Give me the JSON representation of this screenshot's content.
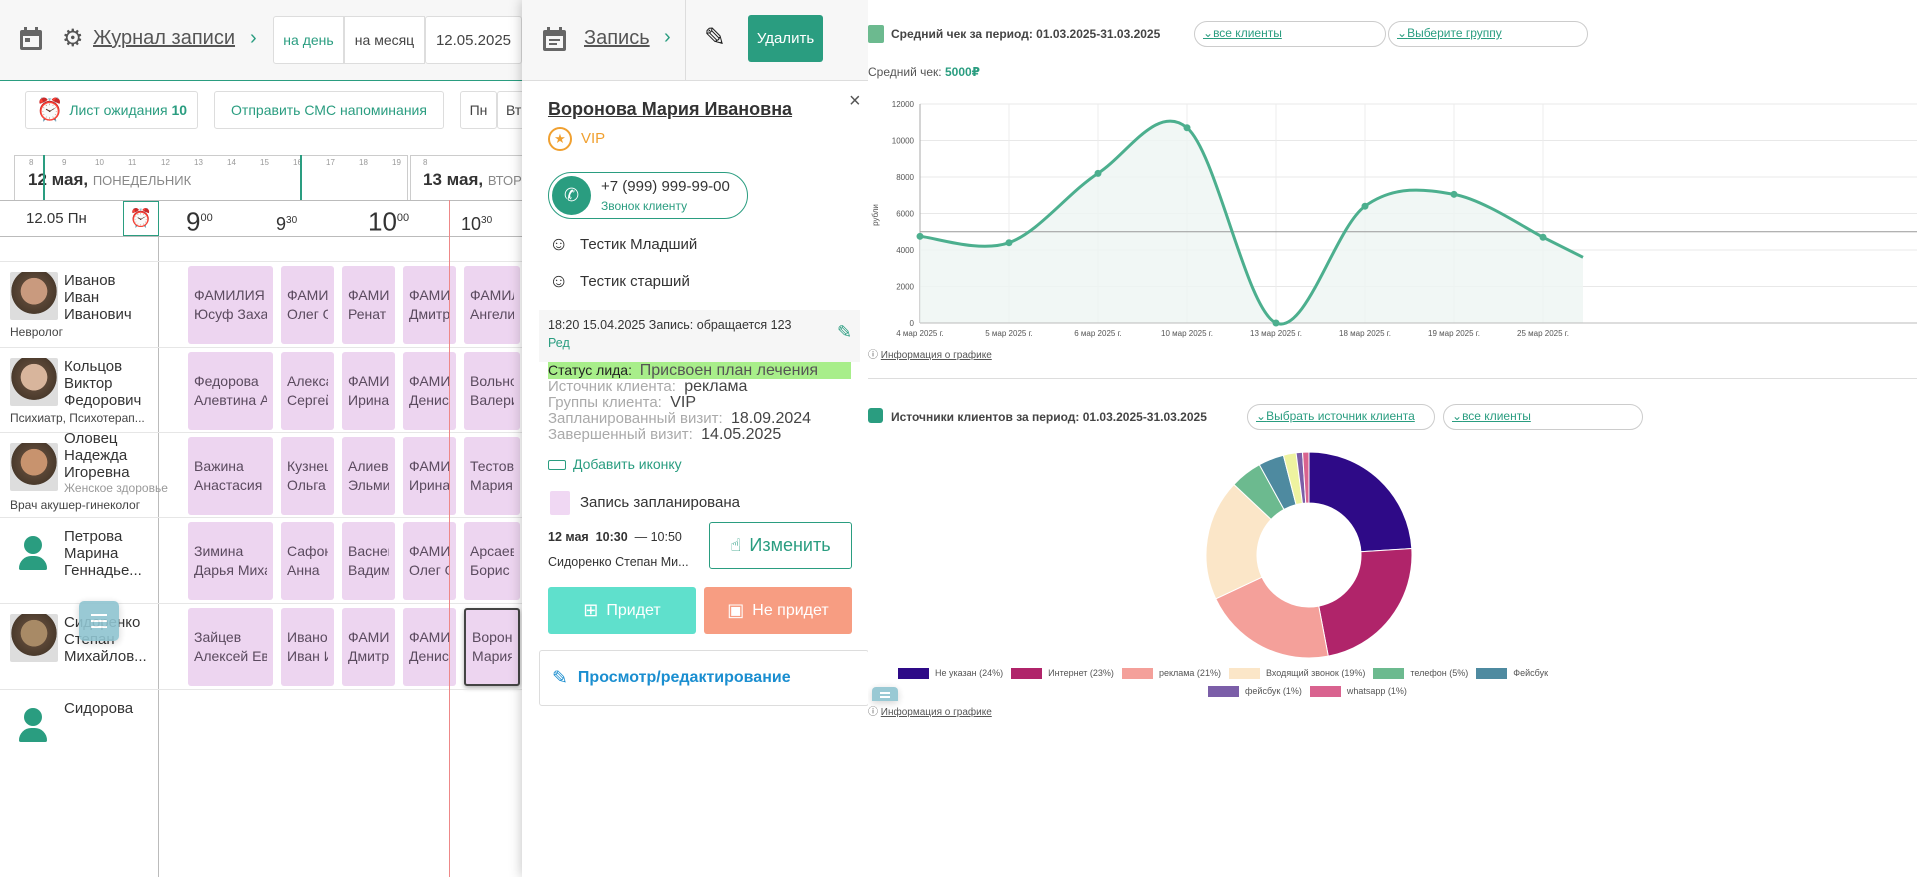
{
  "header": {
    "title": "Журнал записи",
    "view_day": "на день",
    "view_month": "на месяц",
    "date": "12.05.2025"
  },
  "toolbar": {
    "waitlist_label": "Лист ожидания",
    "waitlist_count": "10",
    "sms_label": "Отправить СМС напоминания",
    "weekdays": [
      "Пн",
      "Вт"
    ]
  },
  "timeline": {
    "hours": [
      "8",
      "9",
      "10",
      "11",
      "12",
      "13",
      "14",
      "15",
      "16",
      "17",
      "18",
      "19"
    ],
    "day1_date": "12 мая,",
    "day1_weekday": "ПОНЕДЕЛЬНИК",
    "day2_hour": "8",
    "day2_date": "13 мая,",
    "day2_weekday": "ВТОРНИК"
  },
  "grid": {
    "date_label": "12.05 Пн",
    "times": [
      {
        "h": "9",
        "m": "00"
      },
      {
        "h": "9",
        "m": "30"
      },
      {
        "h": "10",
        "m": "00"
      },
      {
        "h": "10",
        "m": "30"
      }
    ]
  },
  "doctors": [
    {
      "name": [
        "Иванов",
        "Иван",
        "Иванович"
      ],
      "spec": "Невролог",
      "appts": [
        [
          "ФАМИЛИЯ",
          "Юсуф Захаров"
        ],
        [
          "ФАМИЛИЯ",
          "Олег О."
        ],
        [
          "ФАМИЛИЯ",
          "Ренат Н"
        ],
        [
          "ФАМИЛИЯ",
          "Дмитрий"
        ],
        [
          "ФАМИЛИЯ",
          "Ангелина"
        ]
      ]
    },
    {
      "name": [
        "Кольцов",
        "Виктор",
        "Федорович"
      ],
      "spec": "Психиатр, Психотерап...",
      "appts": [
        [
          "Федорова",
          "Алевтина А"
        ],
        [
          "Александров",
          "Сергей"
        ],
        [
          "ФАМИЛИЯ",
          "Ирина"
        ],
        [
          "ФАМИЛИЯ",
          "Денис А"
        ],
        [
          "Вольнова",
          "Валерия"
        ]
      ]
    },
    {
      "name": [
        "Оловец",
        "Надежда",
        "Игоревна"
      ],
      "extra": "Женское здоровье",
      "spec": "Врач акушер-гинеколог",
      "appts": [
        [
          "Важина",
          "Анастасия"
        ],
        [
          "Кузнецова",
          "Ольга"
        ],
        [
          "Алиева",
          "Эльмира"
        ],
        [
          "ФАМИЛИЯ",
          "Ирина"
        ],
        [
          "Тестова",
          "Мария"
        ]
      ]
    },
    {
      "name": [
        "Петрова",
        "Марина",
        "Геннадье..."
      ],
      "spec": "",
      "appts": [
        [
          "Зимина",
          "Дарья Михайловна"
        ],
        [
          "Сафонова",
          "Анна"
        ],
        [
          "Васнецов",
          "Вадим"
        ],
        [
          "ФАМИЛИЯ",
          "Олег О."
        ],
        [
          "Арсаев",
          "Борис Б"
        ]
      ]
    },
    {
      "name": [
        "Сидоренко",
        "Степан",
        "Михайлов..."
      ],
      "spec": "",
      "appts": [
        [
          "Зайцев",
          "Алексей Евгеньевич"
        ],
        [
          "Иванов",
          "Иван И"
        ],
        [
          "ФАМИЛИЯ",
          "Дмитрий"
        ],
        [
          "ФАМИЛИЯ",
          "Денис А"
        ],
        [
          "Воронова",
          "Мария"
        ]
      ]
    },
    {
      "name": [
        "Сидорова"
      ],
      "spec": "",
      "appts": []
    }
  ],
  "modal": {
    "title": "Запись",
    "delete_label": "Удалить",
    "client_name": "Воронова Мария Ивановна",
    "badge": "VIP",
    "phone": "+7 (999) 999-99-00",
    "call_label": "Звонок клиенту",
    "relatives": [
      "Тестик Младший",
      "Тестик старший"
    ],
    "note_text": "18:20 15.04.2025 Запись: обращается 123",
    "note_edit": "Ред",
    "status_label": "Статус лида:",
    "status_value": "Присвоен план лечения",
    "fields": [
      {
        "label": "Источник клиента:",
        "value": "реклама"
      },
      {
        "label": "Группы клиента:",
        "value": "VIP"
      },
      {
        "label": "Запланированный визит:",
        "value": "18.09.2024"
      },
      {
        "label": "Завершенный визит:",
        "value": "14.05.2025"
      }
    ],
    "add_icon_label": "Добавить иконку",
    "appt_status": "Запись запланирована",
    "appt_date": "12 мая",
    "appt_start": "10:30",
    "appt_end": "— 10:50",
    "appt_doctor": "Сидоренко Степан Ми...",
    "change_label": "Изменить",
    "will_come": "Придет",
    "wont_come": "Не придет",
    "view_edit": "Просмотр/редактирование"
  },
  "colors": {
    "accent": "#2a9d80",
    "appointment": "#edd5f0",
    "status_highlight": "#a8ee8a",
    "will_come": "#5fe0cc",
    "wont_come": "#f79d82",
    "link_blue": "#1a8ed0",
    "vip": "#f0a030"
  },
  "avg_check": {
    "title": "Средний чек за период: 01.03.2025-31.03.2025",
    "clients_filter": "все клиенты",
    "group_filter": "Выберите группу",
    "summary_label": "Средний чек:",
    "summary_value": "5000₽",
    "info_link": "Информация о графике"
  },
  "sources": {
    "title": "Источники клиентов за период: 01.03.2025-31.03.2025",
    "source_filter": "Выбрать источник клиента",
    "clients_filter": "все клиенты",
    "info_link": "Информация о графике"
  },
  "chart_data": [
    {
      "type": "area",
      "title": "",
      "ylabel": "рубли",
      "ylim": [
        0,
        12000
      ],
      "yticks": [
        0,
        2000,
        4000,
        6000,
        8000,
        10000,
        12000
      ],
      "grid": true,
      "categories": [
        "4 мар 2025 г.",
        "5 мар 2025 г.",
        "6 мар 2025 г.",
        "10 мар 2025 г.",
        "13 мар 2025 г.",
        "18 мар 2025 г.",
        "19 мар 2025 г.",
        "25 мар 2025 г."
      ],
      "values": [
        4750,
        4400,
        8200,
        10700,
        0,
        6400,
        7050,
        4700
      ],
      "reference_line": 5000,
      "color": "#4caf8e"
    },
    {
      "type": "pie",
      "donut": true,
      "legend": "bottom",
      "slices": [
        {
          "name": "Не указан (24%)",
          "value": 24,
          "color": "#2e0a87"
        },
        {
          "name": "Интернет (23%)",
          "value": 23,
          "color": "#b0246a"
        },
        {
          "name": "реклама (21%)",
          "value": 21,
          "color": "#f4a09a"
        },
        {
          "name": "Входящий звонок (19%)",
          "value": 19,
          "color": "#fbe6c8"
        },
        {
          "name": "телефон (5%)",
          "value": 5,
          "color": "#6cba8f"
        },
        {
          "name": "Фейсбук",
          "value": 4,
          "color": "#4e8aa0"
        },
        {
          "name": "",
          "value": 2,
          "color": "#eef3a0"
        },
        {
          "name": "фейсбук (1%)",
          "value": 1,
          "color": "#7b5ea8"
        },
        {
          "name": "whatsapp (1%)",
          "value": 1,
          "color": "#d9638f"
        }
      ]
    }
  ]
}
